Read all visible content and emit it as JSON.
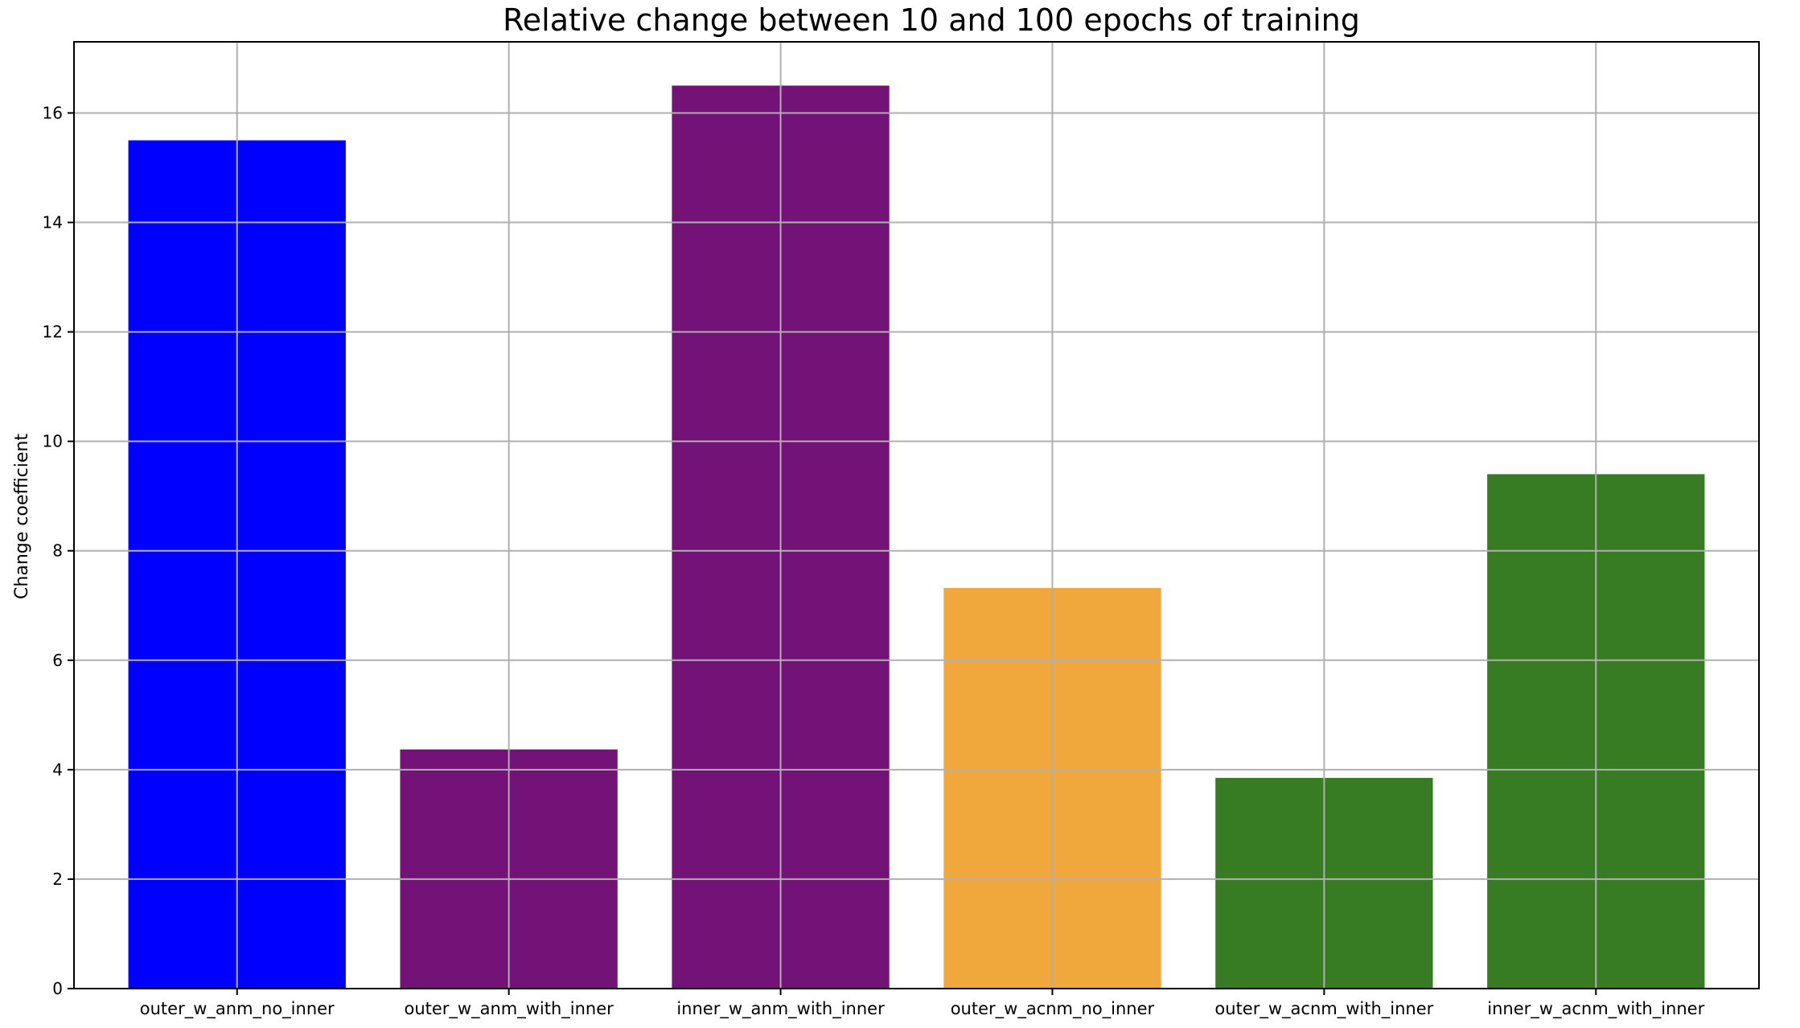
{
  "chart_data": {
    "type": "bar",
    "title": "Relative change between 10 and 100 epochs of training",
    "xlabel": "",
    "ylabel": "Change coefficient",
    "categories": [
      "outer_w_anm_no_inner",
      "outer_w_anm_with_inner",
      "inner_w_anm_with_inner",
      "outer_w_acnm_no_inner",
      "outer_w_acnm_with_inner",
      "inner_w_acnm_with_inner"
    ],
    "values": [
      15.5,
      4.37,
      16.5,
      7.32,
      3.85,
      9.4
    ],
    "colors": [
      "#0000ff",
      "#731378",
      "#731378",
      "#f0a83c",
      "#377b22",
      "#377b22"
    ],
    "ylim": [
      0,
      17.3
    ],
    "yticks": [
      0,
      2,
      4,
      6,
      8,
      10,
      12,
      14,
      16
    ],
    "grid": true,
    "legend": "none"
  }
}
